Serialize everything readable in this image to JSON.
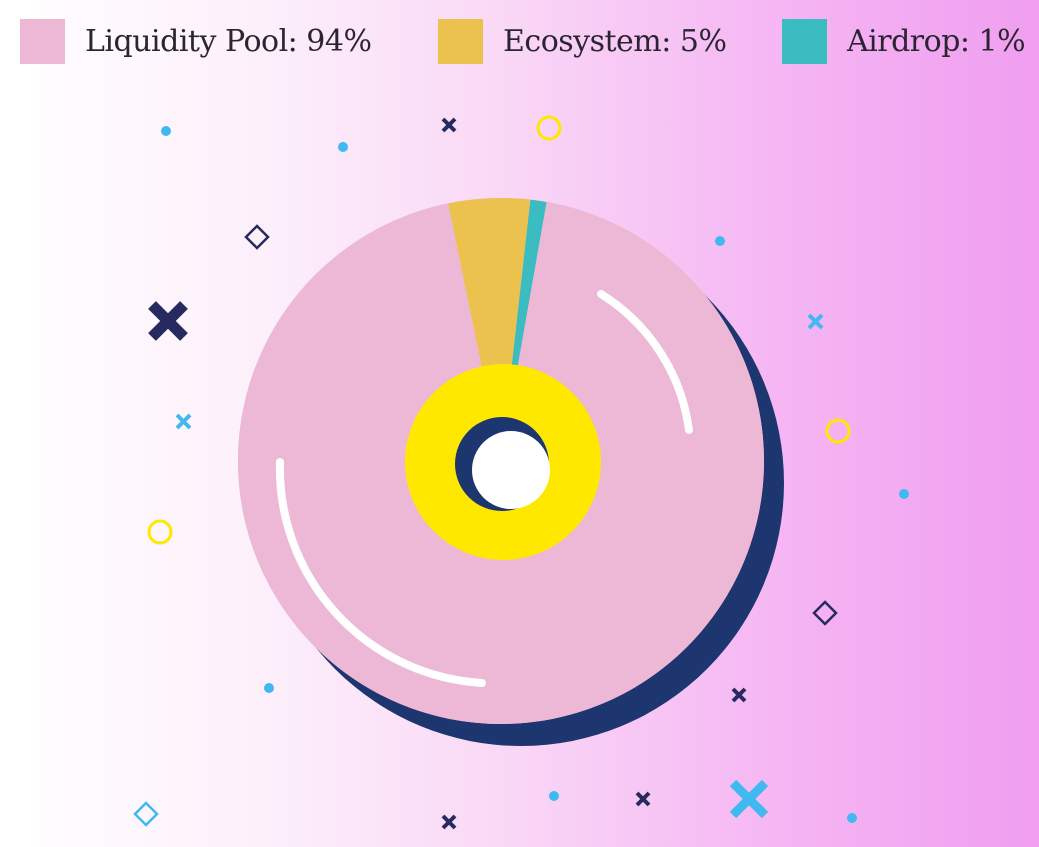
{
  "chart_data": {
    "type": "pie",
    "style": "donut",
    "legend_position": "top",
    "slices": [
      {
        "label": "Liquidity Pool: 94%",
        "name": "Liquidity Pool",
        "value": 94,
        "color": "#ecb8d6"
      },
      {
        "label": "Ecosystem: 5%",
        "name": "Ecosystem",
        "value": 5,
        "color": "#ecc24f"
      },
      {
        "label": "Airdrop: 1%",
        "name": "Airdrop",
        "value": 1,
        "color": "#3bbcc0"
      }
    ],
    "shadow_color": "#1d3670",
    "inner_ring_color": "#ffe800"
  }
}
